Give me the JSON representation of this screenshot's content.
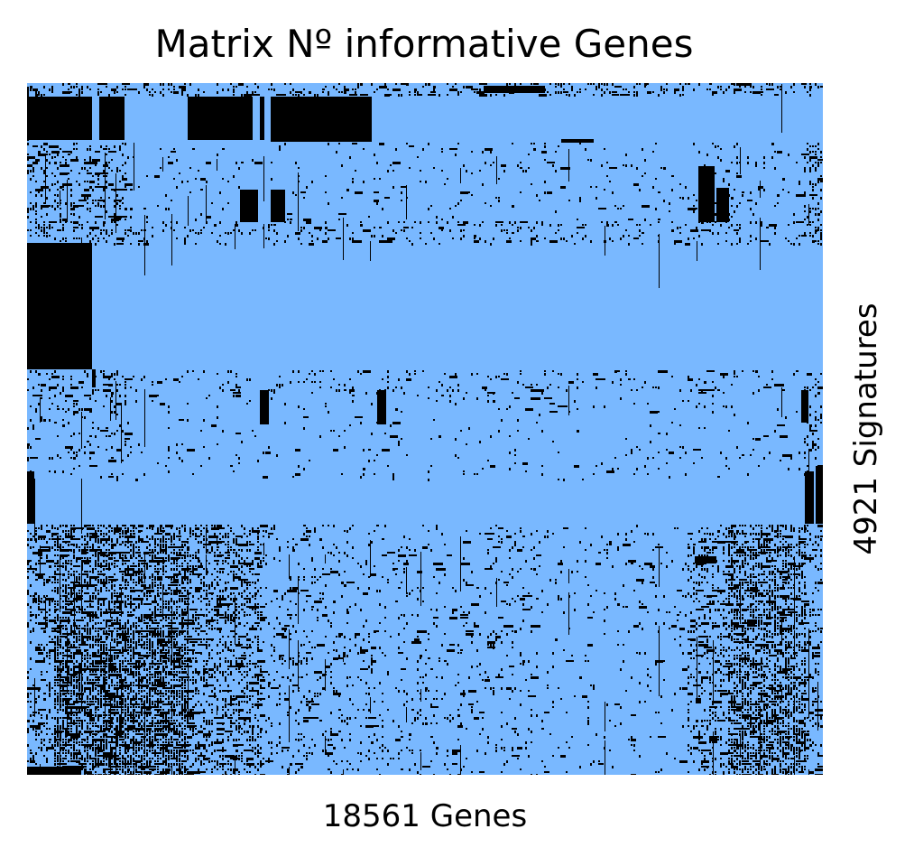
{
  "chart_data": {
    "type": "heatmap",
    "title": "Matrix Nº informative Genes",
    "xlabel": "18561 Genes",
    "ylabel": "4921 Signatures",
    "n_columns": 18561,
    "n_rows": 4921,
    "value_colors": {
      "0": "#79b8ff",
      "1": "#000000"
    },
    "axes_visible": false,
    "grid": false,
    "legend": "none",
    "description_of_values": "binary membership matrix (gene informative in signature = black)"
  }
}
